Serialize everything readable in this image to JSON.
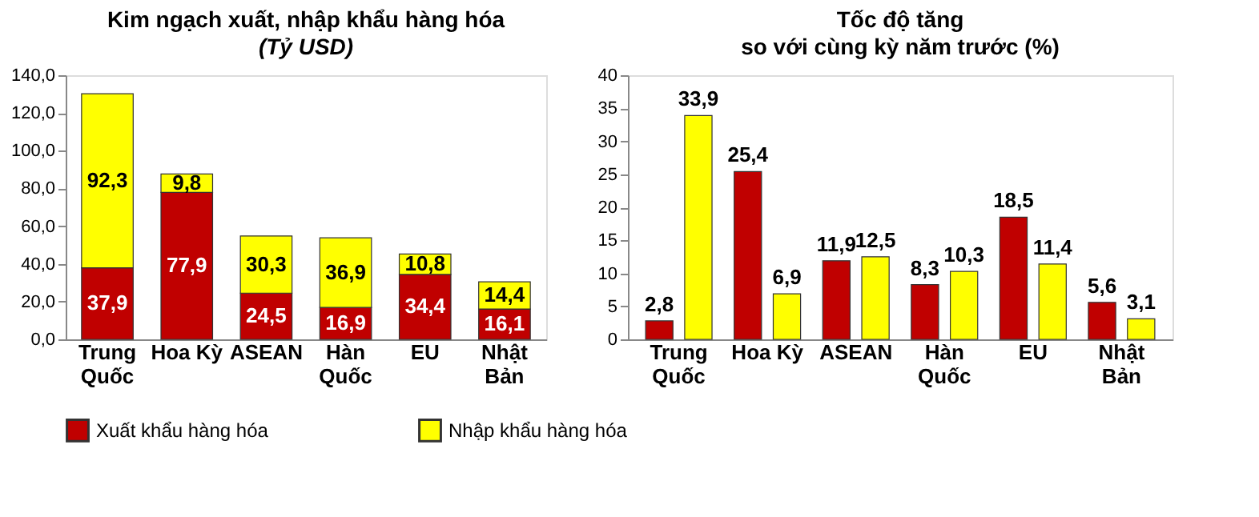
{
  "chart_data": [
    {
      "type": "bar",
      "title": "Kim ngạch xuất, nhập khẩu hàng hóa",
      "subtitle": "(Tỷ USD)",
      "stacked": true,
      "categories": [
        "Trung Quốc",
        "Hoa Kỳ",
        "ASEAN",
        "Hàn Quốc",
        "EU",
        "Nhật Bản"
      ],
      "series": [
        {
          "name": "Xuất khẩu hàng hóa",
          "color": "#c00000",
          "values": [
            37.9,
            77.9,
            24.5,
            16.9,
            34.4,
            16.1
          ],
          "value_labels": [
            "37,9",
            "77,9",
            "24,5",
            "16,9",
            "34,4",
            "16,1"
          ]
        },
        {
          "name": "Nhập khẩu hàng hóa",
          "color": "#ffff00",
          "values": [
            92.3,
            9.8,
            30.3,
            36.9,
            10.8,
            14.4
          ],
          "value_labels": [
            "92,3",
            "9,8",
            "30,3",
            "36,9",
            "10,8",
            "14,4"
          ]
        }
      ],
      "ylim": [
        0,
        140
      ],
      "yticks": [
        {
          "value": 0,
          "label": "0,0"
        },
        {
          "value": 20,
          "label": "20,0"
        },
        {
          "value": 40,
          "label": "40,0"
        },
        {
          "value": 60,
          "label": "60,0"
        },
        {
          "value": 80,
          "label": "80,0"
        },
        {
          "value": 100,
          "label": "100,0"
        },
        {
          "value": 120,
          "label": "120,0"
        },
        {
          "value": 140,
          "label": "140,0"
        }
      ],
      "grid": false,
      "legend": "bottom"
    },
    {
      "type": "bar",
      "title": "Tốc độ tăng",
      "subtitle": "so với cùng kỳ năm trước (%)",
      "categories": [
        "Trung Quốc",
        "Hoa Kỳ",
        "ASEAN",
        "Hàn Quốc",
        "EU",
        "Nhật Bản"
      ],
      "series": [
        {
          "name": "Xuất khẩu hàng hóa",
          "color": "#c00000",
          "values": [
            2.8,
            25.4,
            11.9,
            8.3,
            18.5,
            5.6
          ],
          "value_labels": [
            "2,8",
            "25,4",
            "11,9",
            "8,3",
            "18,5",
            "5,6"
          ]
        },
        {
          "name": "Nhập khẩu hàng hóa",
          "color": "#ffff00",
          "values": [
            33.9,
            6.9,
            12.5,
            10.3,
            11.4,
            3.1
          ],
          "value_labels": [
            "33,9",
            "6,9",
            "12,5",
            "10,3",
            "11,4",
            "3,1"
          ]
        }
      ],
      "ylim": [
        0,
        40
      ],
      "yticks": [
        0,
        5,
        10,
        15,
        20,
        25,
        30,
        35,
        40
      ],
      "grid": false,
      "legend": "bottom"
    }
  ]
}
